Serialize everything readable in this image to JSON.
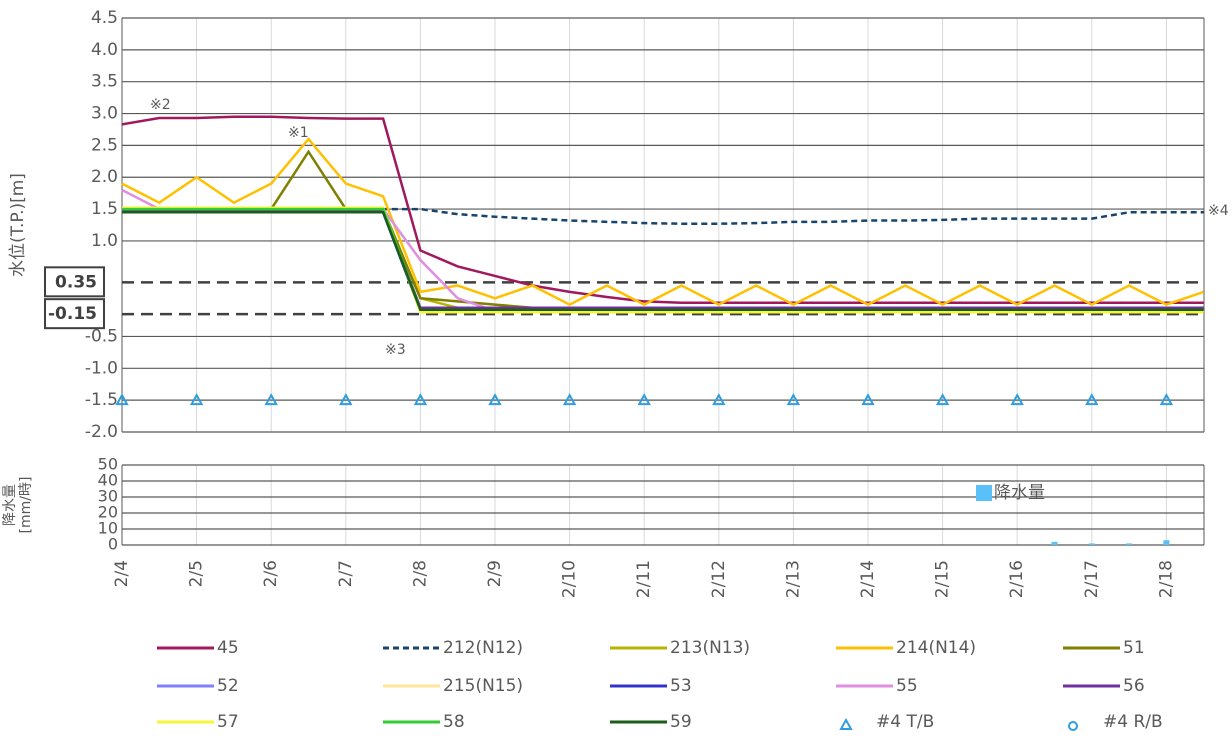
{
  "chart_data": [
    {
      "type": "line",
      "y_label": "水位(T.P.)[m]",
      "ylim": [
        -2.0,
        4.5
      ],
      "yticks": [
        {
          "value": 4.5,
          "label": "4.5"
        },
        {
          "value": 4,
          "label": "4.0"
        },
        {
          "value": 3.5,
          "label": "3.5"
        },
        {
          "value": 3,
          "label": "3.0"
        },
        {
          "value": 2.5,
          "label": "2.5"
        },
        {
          "value": 2,
          "label": "2.0"
        },
        {
          "value": 1.5,
          "label": "1.5"
        },
        {
          "value": 1,
          "label": "1.0"
        },
        {
          "value": -0.5,
          "label": "-0.5"
        },
        {
          "value": -1,
          "label": "-1.0"
        },
        {
          "value": -1.5,
          "label": "-1.5"
        },
        {
          "value": -2,
          "label": "-2.0"
        }
      ],
      "hlines": [
        {
          "value": 0.35,
          "label": "0.35"
        },
        {
          "value": -0.15,
          "label": "-0.15"
        }
      ],
      "annotations": [
        "※2",
        "※1",
        "※3",
        "※4"
      ],
      "grid": true,
      "series": [
        {
          "name": "45",
          "color": "#a0195e",
          "values": [
            2.83,
            2.93,
            2.93,
            2.95,
            2.95,
            2.93,
            2.92,
            2.92,
            0.85,
            0.6,
            0.45,
            0.3,
            0.2,
            0.12,
            0.05,
            0.03,
            0.03,
            0.03,
            0.03,
            0.03,
            0.03,
            0.03,
            0.03,
            0.03,
            0.03,
            0.03,
            0.03,
            0.03,
            0.03,
            0.03
          ]
        },
        {
          "name": "212(N12)",
          "color": "#17456b",
          "dashed": true,
          "values": [
            1.45,
            1.45,
            1.45,
            1.45,
            1.45,
            1.45,
            1.45,
            1.5,
            1.5,
            1.42,
            1.38,
            1.35,
            1.32,
            1.3,
            1.28,
            1.27,
            1.27,
            1.28,
            1.3,
            1.3,
            1.32,
            1.32,
            1.33,
            1.35,
            1.35,
            1.35,
            1.35,
            1.45,
            1.45,
            1.45
          ]
        },
        {
          "name": "213(N13)",
          "color": "#b5b500",
          "values": [
            1.5,
            1.5,
            1.5,
            1.5,
            1.5,
            1.5,
            1.5,
            1.5,
            0.1,
            -0.05,
            -0.05,
            -0.05,
            -0.05,
            -0.05,
            -0.05,
            -0.05,
            -0.05,
            -0.05,
            -0.05,
            -0.05,
            -0.05,
            -0.05,
            -0.05,
            -0.05,
            -0.05,
            -0.05,
            -0.05,
            -0.05,
            -0.05,
            -0.05
          ]
        },
        {
          "name": "214(N14)",
          "color": "#ffc000",
          "values": [
            1.9,
            1.6,
            2.0,
            1.6,
            1.9,
            2.6,
            1.9,
            1.7,
            0.2,
            0.3,
            0.1,
            0.3,
            0.0,
            0.3,
            0.0,
            0.3,
            0.0,
            0.3,
            0.0,
            0.3,
            0.0,
            0.3,
            0.0,
            0.3,
            0.0,
            0.3,
            0.0,
            0.3,
            0.0,
            0.2
          ]
        },
        {
          "name": "51",
          "color": "#7f7f00",
          "values": [
            1.5,
            1.5,
            1.5,
            1.5,
            1.5,
            2.4,
            1.5,
            1.5,
            0.1,
            0.05,
            0.0,
            -0.05,
            -0.05,
            -0.05,
            -0.05,
            -0.05,
            -0.05,
            -0.05,
            -0.05,
            -0.05,
            -0.05,
            -0.05,
            -0.05,
            -0.05,
            -0.05,
            -0.05,
            -0.05,
            -0.05,
            -0.05,
            -0.05
          ]
        },
        {
          "name": "52",
          "color": "#8080ff",
          "values": [
            1.45,
            1.45,
            1.45,
            1.45,
            1.45,
            1.45,
            1.45,
            1.45,
            -0.1,
            -0.1,
            -0.1,
            -0.1,
            -0.1,
            -0.1,
            -0.1,
            -0.1,
            -0.1,
            -0.1,
            -0.1,
            -0.1,
            -0.1,
            -0.1,
            -0.1,
            -0.1,
            -0.1,
            -0.1,
            -0.1,
            -0.1,
            -0.1,
            -0.1
          ]
        },
        {
          "name": "215(N15)",
          "color": "#ffe699",
          "values": [
            1.5,
            1.5,
            1.5,
            1.5,
            1.5,
            1.5,
            1.5,
            1.5,
            -0.1,
            -0.1,
            -0.1,
            -0.1,
            -0.1,
            -0.1,
            -0.1,
            -0.1,
            -0.1,
            -0.1,
            -0.1,
            -0.1,
            -0.1,
            -0.1,
            -0.1,
            -0.1,
            -0.1,
            -0.1,
            -0.1,
            -0.1,
            -0.1,
            -0.1
          ]
        },
        {
          "name": "53",
          "color": "#3333cc",
          "values": [
            1.45,
            1.45,
            1.45,
            1.45,
            1.45,
            1.45,
            1.45,
            1.45,
            -0.1,
            -0.1,
            -0.1,
            -0.1,
            -0.1,
            -0.1,
            -0.1,
            -0.1,
            -0.1,
            -0.1,
            -0.1,
            -0.1,
            -0.1,
            -0.1,
            -0.1,
            -0.1,
            -0.1,
            -0.1,
            -0.1,
            -0.1,
            -0.1,
            -0.1
          ]
        },
        {
          "name": "55",
          "color": "#e08ee0",
          "values": [
            1.8,
            1.5,
            1.5,
            1.5,
            1.5,
            1.5,
            1.5,
            1.5,
            0.7,
            0.1,
            -0.1,
            -0.1,
            -0.1,
            -0.1,
            -0.1,
            -0.1,
            -0.1,
            -0.1,
            -0.1,
            -0.1,
            -0.1,
            -0.1,
            -0.1,
            -0.1,
            -0.1,
            -0.1,
            -0.1,
            -0.1,
            -0.1,
            -0.1
          ]
        },
        {
          "name": "56",
          "color": "#7030a0",
          "values": [
            1.48,
            1.48,
            1.48,
            1.48,
            1.48,
            1.48,
            1.48,
            1.48,
            -0.05,
            -0.05,
            -0.05,
            -0.05,
            -0.05,
            -0.05,
            -0.05,
            -0.05,
            -0.05,
            -0.05,
            -0.05,
            -0.05,
            -0.05,
            -0.05,
            -0.05,
            -0.05,
            -0.05,
            -0.05,
            -0.05,
            -0.05,
            -0.05,
            -0.05
          ]
        },
        {
          "name": "57",
          "color": "#f5f53a",
          "values": [
            1.52,
            1.52,
            1.52,
            1.52,
            1.52,
            1.52,
            1.52,
            1.52,
            -0.12,
            -0.12,
            -0.12,
            -0.12,
            -0.12,
            -0.12,
            -0.12,
            -0.12,
            -0.12,
            -0.12,
            -0.12,
            -0.12,
            -0.12,
            -0.12,
            -0.12,
            -0.12,
            -0.12,
            -0.12,
            -0.12,
            -0.12,
            -0.12,
            -0.12
          ]
        },
        {
          "name": "58",
          "color": "#33cc33",
          "values": [
            1.5,
            1.5,
            1.5,
            1.5,
            1.5,
            1.5,
            1.5,
            1.5,
            -0.08,
            -0.08,
            -0.08,
            -0.08,
            -0.08,
            -0.08,
            -0.08,
            -0.08,
            -0.08,
            -0.08,
            -0.08,
            -0.08,
            -0.08,
            -0.08,
            -0.08,
            -0.08,
            -0.08,
            -0.08,
            -0.08,
            -0.08,
            -0.08,
            -0.08
          ]
        },
        {
          "name": "59",
          "color": "#1a5e1a",
          "values": [
            1.45,
            1.45,
            1.45,
            1.45,
            1.45,
            1.45,
            1.45,
            1.45,
            -0.08,
            -0.08,
            -0.08,
            -0.08,
            -0.08,
            -0.08,
            -0.08,
            -0.08,
            -0.08,
            -0.08,
            -0.08,
            -0.08,
            -0.08,
            -0.08,
            -0.08,
            -0.08,
            -0.08,
            -0.08,
            -0.08,
            -0.08,
            -0.08,
            -0.08
          ]
        },
        {
          "name": "#4 T/B",
          "color": "#2e9ee0",
          "marker": "triangle",
          "values": [
            -1.5,
            null,
            -1.5,
            null,
            -1.5,
            null,
            -1.5,
            null,
            -1.5,
            null,
            -1.5,
            null,
            -1.5,
            null,
            -1.5,
            null,
            -1.5,
            null,
            -1.5,
            null,
            -1.5,
            null,
            -1.5,
            null,
            -1.5,
            null,
            -1.5,
            null,
            -1.5,
            null
          ]
        },
        {
          "name": "#4 R/B",
          "color": "#2e9ee0",
          "marker": "circle",
          "values": [
            null,
            null,
            null,
            null,
            null,
            null,
            null,
            null,
            null,
            null,
            null,
            null,
            null,
            null,
            null,
            null,
            null,
            null,
            null,
            null,
            null,
            null,
            null,
            null,
            null,
            null,
            null,
            null,
            null,
            null
          ]
        }
      ]
    },
    {
      "type": "bar",
      "y_label": [
        "降水量",
        "[mm/時]"
      ],
      "categories": [
        "2/4",
        null,
        "2/5",
        null,
        "2/6",
        null,
        "2/7",
        null,
        "2/8",
        null,
        "2/9",
        null,
        "2/10",
        null,
        "2/11",
        null,
        "2/12",
        null,
        "2/13",
        null,
        "2/14",
        null,
        "2/15",
        null,
        "2/16",
        null,
        "2/17",
        null,
        "2/18",
        null
      ],
      "ylim": [
        0,
        50
      ],
      "yticks": [
        0,
        10,
        20,
        30,
        40,
        50
      ],
      "grid": true,
      "series": [
        {
          "name": "降水量",
          "color": "#5bc0f8",
          "values": [
            0,
            0,
            0,
            0,
            0,
            0,
            0,
            0,
            0,
            0,
            0,
            0,
            0,
            0,
            0,
            0,
            0,
            0,
            0,
            0,
            0,
            0,
            0,
            0,
            0,
            2,
            1,
            1,
            3,
            0
          ]
        }
      ]
    }
  ]
}
